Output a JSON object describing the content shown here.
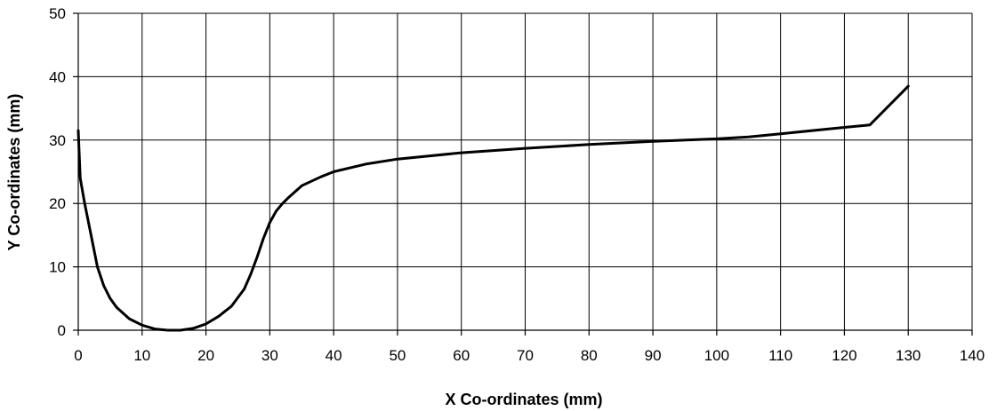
{
  "chart_data": {
    "type": "line",
    "title": "",
    "xlabel": "X Co-ordinates (mm)",
    "ylabel": "Y Co-ordinates (mm)",
    "xlim": [
      0,
      140
    ],
    "ylim": [
      0,
      50
    ],
    "xticks": [
      0,
      10,
      20,
      30,
      40,
      50,
      60,
      70,
      80,
      90,
      100,
      110,
      120,
      130,
      140
    ],
    "yticks": [
      0,
      10,
      20,
      30,
      40,
      50
    ],
    "grid": true,
    "legend": "none",
    "line_color": "#000000",
    "series": [
      {
        "x": [
          0,
          0.3,
          1,
          2,
          3,
          4,
          5,
          6,
          8,
          10,
          12,
          14,
          15,
          16,
          18,
          20,
          22,
          24,
          26,
          27,
          28,
          29,
          30,
          31,
          32,
          33,
          35,
          38,
          40,
          45,
          50,
          60,
          70,
          80,
          90,
          100,
          105,
          110,
          120,
          124,
          130
        ],
        "y": [
          31.5,
          24,
          20,
          15,
          10,
          7,
          5,
          3.6,
          1.8,
          0.8,
          0.2,
          0,
          0,
          0,
          0.3,
          1,
          2.2,
          3.8,
          6.5,
          8.8,
          11.5,
          14.5,
          17,
          18.8,
          20,
          21,
          22.8,
          24.2,
          25,
          26.2,
          27,
          28,
          28.7,
          29.3,
          29.8,
          30.2,
          30.5,
          31,
          32,
          32.4,
          38.5
        ]
      }
    ]
  }
}
